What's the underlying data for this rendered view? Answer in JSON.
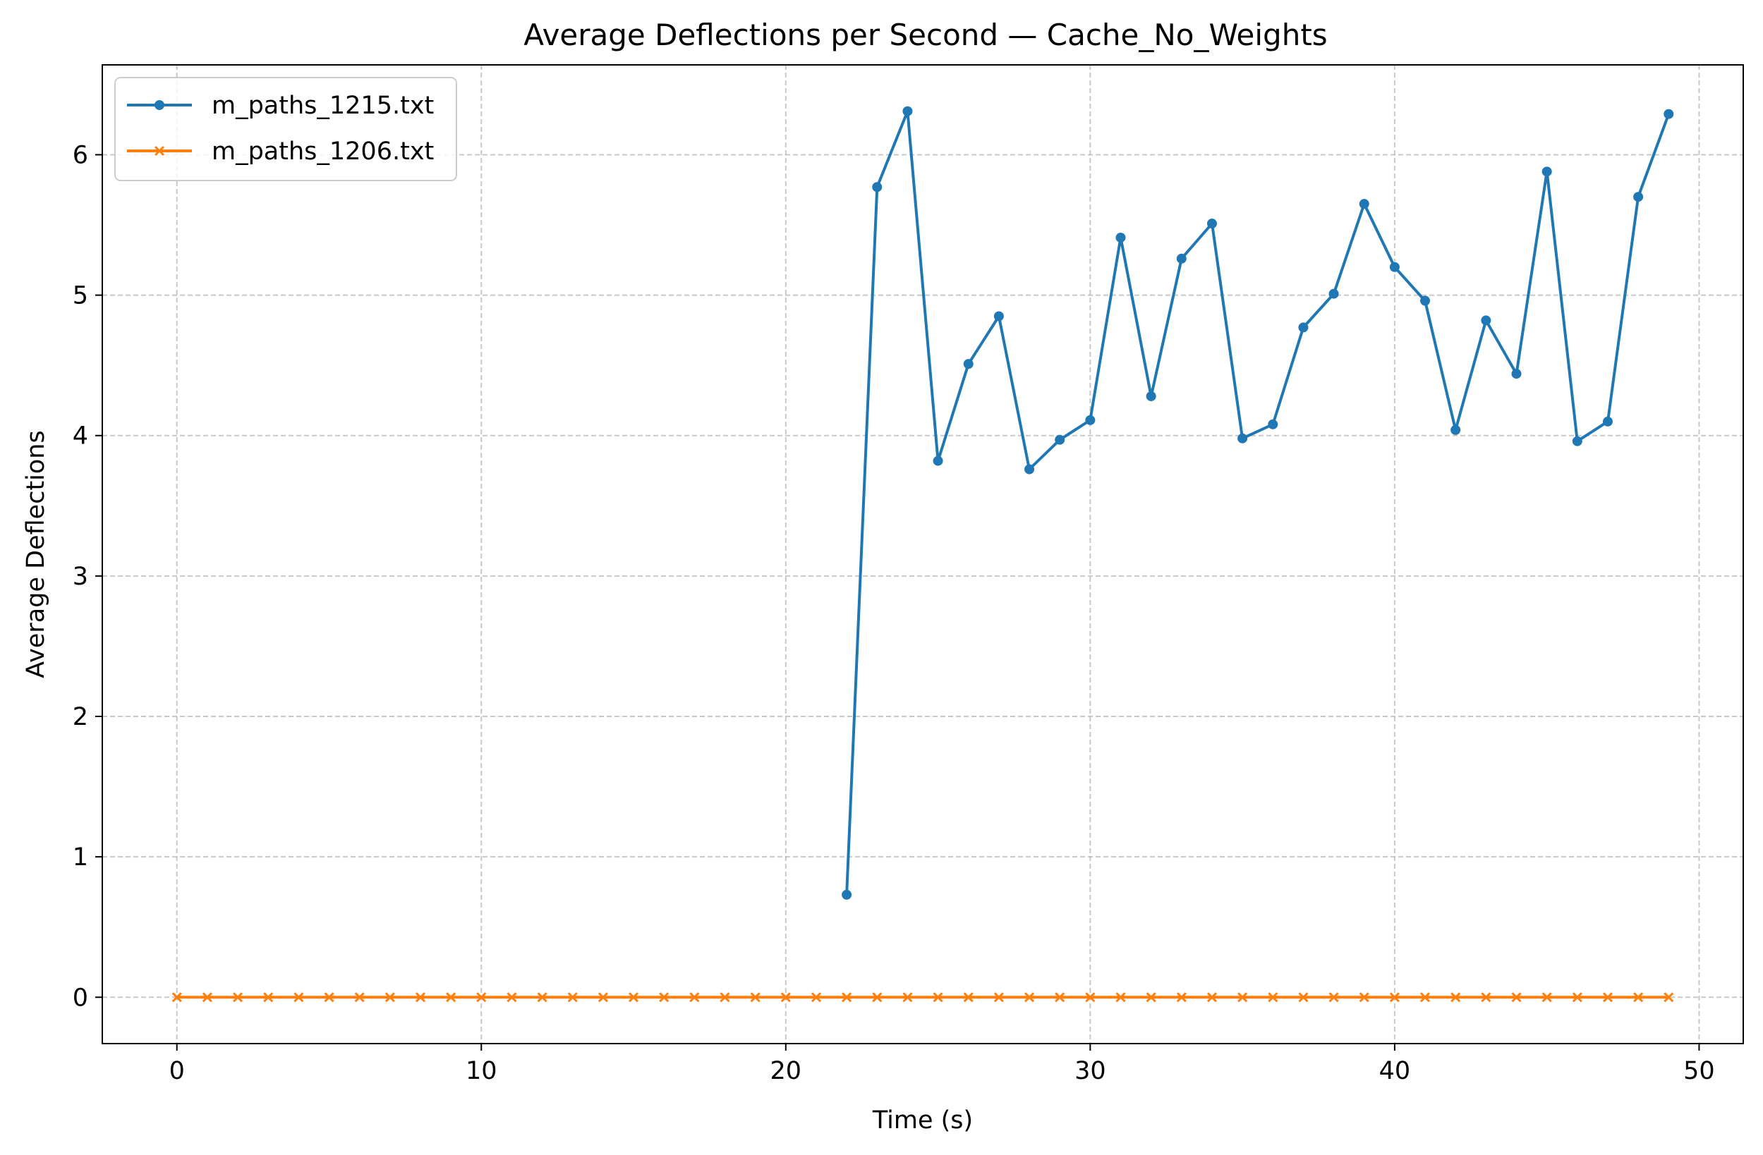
{
  "chart_data": {
    "type": "line",
    "title": "Average Deflections per Second — Cache_No_Weights",
    "xlabel": "Time (s)",
    "ylabel": "Average Deflections",
    "xlim": [
      -2.45,
      51.45
    ],
    "ylim": [
      -0.33,
      6.64
    ],
    "xticks": [
      0,
      10,
      20,
      30,
      40,
      50
    ],
    "yticks": [
      0,
      1,
      2,
      3,
      4,
      5,
      6
    ],
    "grid": true,
    "grid_style": "dashed",
    "legend_position": "upper-left",
    "series": [
      {
        "name": "m_paths_1215.txt",
        "color": "#1f77b4",
        "marker": "circle",
        "x": [
          22,
          23,
          24,
          25,
          26,
          27,
          28,
          29,
          30,
          31,
          32,
          33,
          34,
          35,
          36,
          37,
          38,
          39,
          40,
          41,
          42,
          43,
          44,
          45,
          46,
          47,
          48,
          49
        ],
        "y": [
          0.73,
          5.77,
          6.31,
          3.82,
          4.51,
          4.85,
          3.76,
          3.97,
          4.11,
          5.41,
          4.28,
          5.26,
          5.51,
          3.98,
          4.08,
          4.77,
          5.01,
          5.65,
          5.2,
          4.96,
          4.04,
          4.82,
          4.44,
          5.88,
          3.96,
          4.1,
          5.7,
          6.29
        ]
      },
      {
        "name": "m_paths_1206.txt",
        "color": "#ff7f0e",
        "marker": "x",
        "x": [
          0,
          1,
          2,
          3,
          4,
          5,
          6,
          7,
          8,
          9,
          10,
          11,
          12,
          13,
          14,
          15,
          16,
          17,
          18,
          19,
          20,
          21,
          22,
          23,
          24,
          25,
          26,
          27,
          28,
          29,
          30,
          31,
          32,
          33,
          34,
          35,
          36,
          37,
          38,
          39,
          40,
          41,
          42,
          43,
          44,
          45,
          46,
          47,
          48,
          49
        ],
        "y": [
          0,
          0,
          0,
          0,
          0,
          0,
          0,
          0,
          0,
          0,
          0,
          0,
          0,
          0,
          0,
          0,
          0,
          0,
          0,
          0,
          0,
          0,
          0,
          0,
          0,
          0,
          0,
          0,
          0,
          0,
          0,
          0,
          0,
          0,
          0,
          0,
          0,
          0,
          0,
          0,
          0,
          0,
          0,
          0,
          0,
          0,
          0,
          0,
          0,
          0
        ]
      }
    ]
  }
}
